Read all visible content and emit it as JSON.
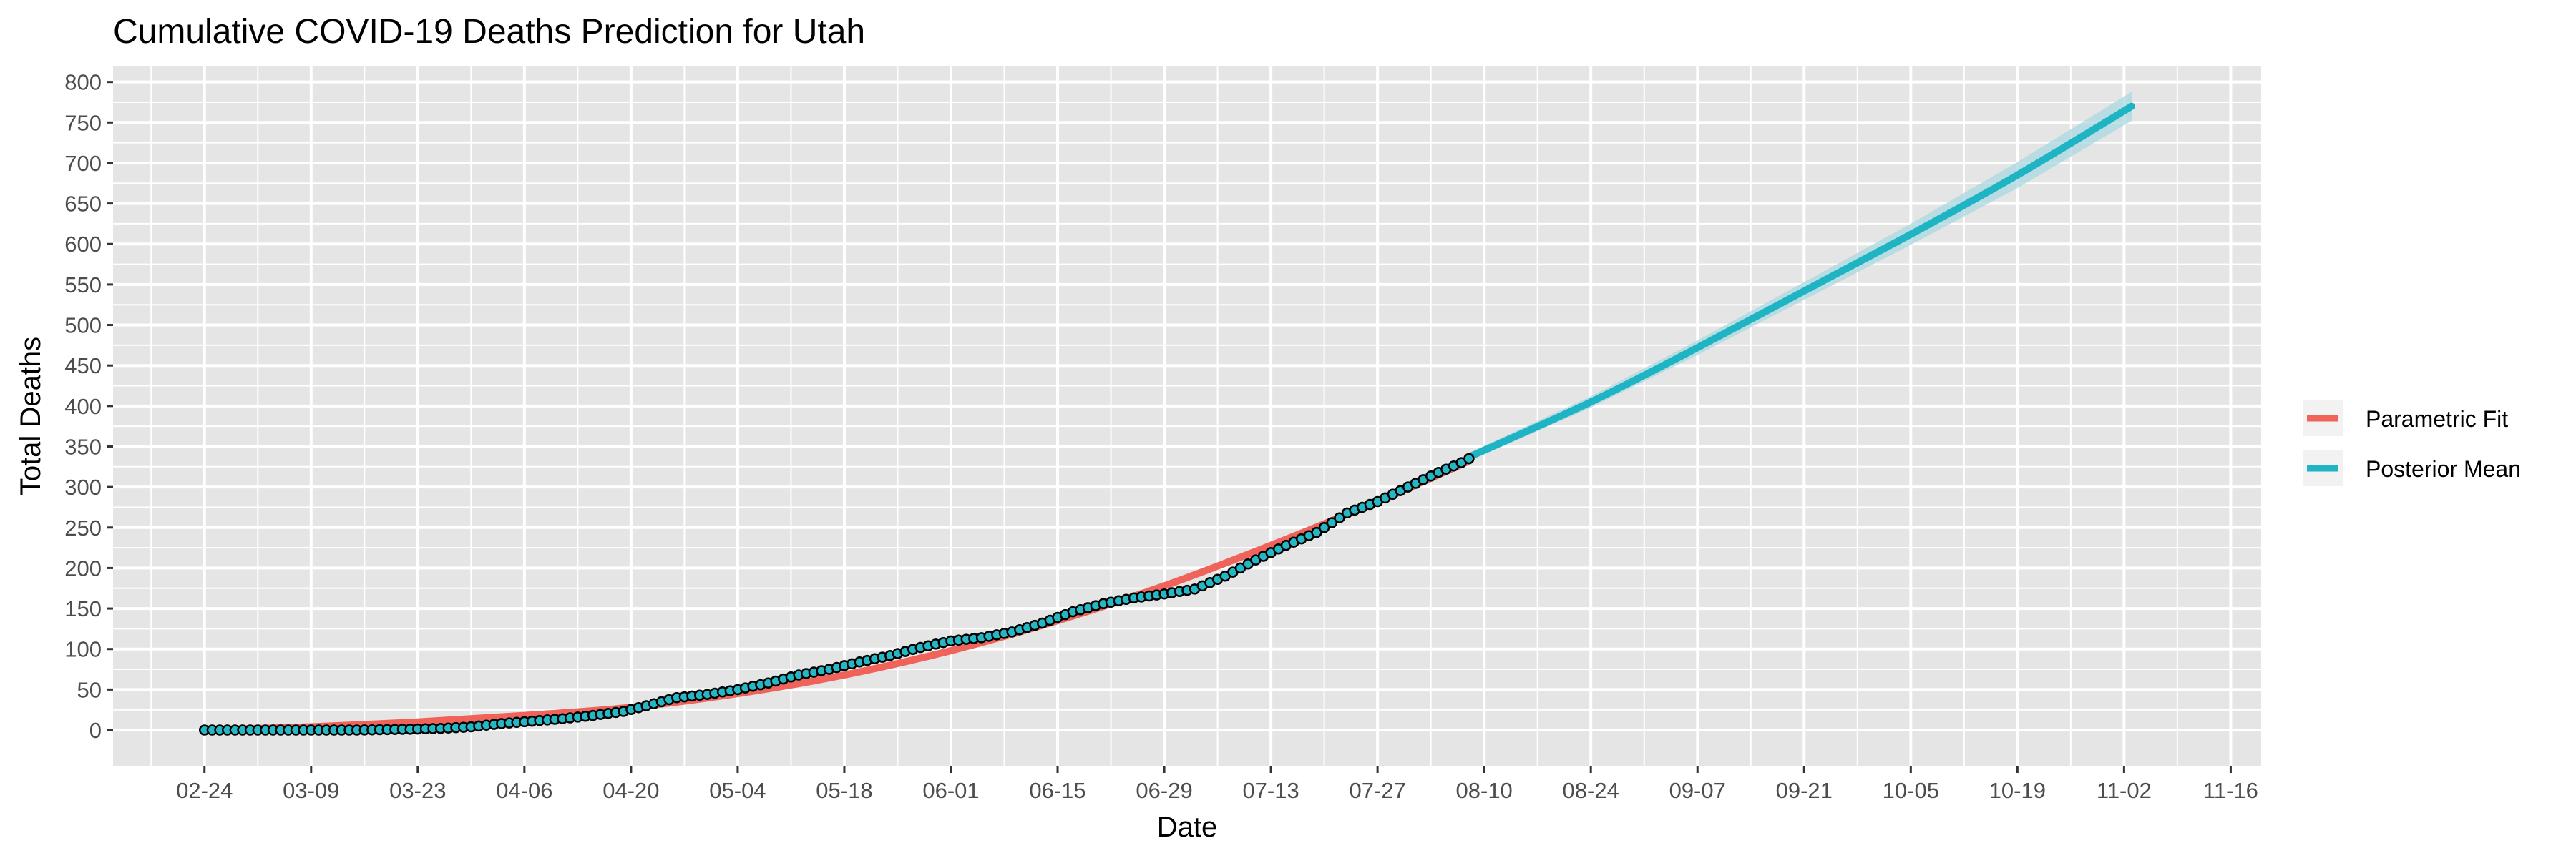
{
  "chart_data": {
    "type": "line",
    "title": "Cumulative COVID-19 Deaths Prediction for Utah",
    "xlabel": "Date",
    "ylabel": "Total Deaths",
    "x_range": [
      "2020-02-12",
      "2020-11-20"
    ],
    "ylim": [
      -45,
      820
    ],
    "y_ticks": [
      0,
      50,
      100,
      150,
      200,
      250,
      300,
      350,
      400,
      450,
      500,
      550,
      600,
      650,
      700,
      750,
      800
    ],
    "x_ticks": [
      {
        "date": "2020-02-24",
        "label": "02-24"
      },
      {
        "date": "2020-03-09",
        "label": "03-09"
      },
      {
        "date": "2020-03-23",
        "label": "03-23"
      },
      {
        "date": "2020-04-06",
        "label": "04-06"
      },
      {
        "date": "2020-04-20",
        "label": "04-20"
      },
      {
        "date": "2020-05-04",
        "label": "05-04"
      },
      {
        "date": "2020-05-18",
        "label": "05-18"
      },
      {
        "date": "2020-06-01",
        "label": "06-01"
      },
      {
        "date": "2020-06-15",
        "label": "06-15"
      },
      {
        "date": "2020-06-29",
        "label": "06-29"
      },
      {
        "date": "2020-07-13",
        "label": "07-13"
      },
      {
        "date": "2020-07-27",
        "label": "07-27"
      },
      {
        "date": "2020-08-10",
        "label": "08-10"
      },
      {
        "date": "2020-08-24",
        "label": "08-24"
      },
      {
        "date": "2020-09-07",
        "label": "09-07"
      },
      {
        "date": "2020-09-21",
        "label": "09-21"
      },
      {
        "date": "2020-10-05",
        "label": "10-05"
      },
      {
        "date": "2020-10-19",
        "label": "10-19"
      },
      {
        "date": "2020-11-02",
        "label": "11-02"
      },
      {
        "date": "2020-11-16",
        "label": "11-16"
      }
    ],
    "grid": true,
    "legend_position": "right",
    "colors": {
      "panel_background": "#e5e5e5",
      "grid": "#ffffff",
      "parametric_fit": "#f0635b",
      "posterior_mean": "#1fb4c4",
      "credible_band": "#a9d8e2",
      "observed_fill": "#25b8c4",
      "observed_stroke": "#000000"
    },
    "series": [
      {
        "name": "Parametric Fit",
        "kind": "line",
        "points": [
          [
            "2020-02-24",
            0
          ],
          [
            "2020-03-09",
            4
          ],
          [
            "2020-03-23",
            10
          ],
          [
            "2020-04-06",
            18
          ],
          [
            "2020-04-20",
            28
          ],
          [
            "2020-05-04",
            45
          ],
          [
            "2020-05-18",
            68
          ],
          [
            "2020-06-01",
            98
          ],
          [
            "2020-06-15",
            135
          ],
          [
            "2020-06-29",
            178
          ],
          [
            "2020-07-13",
            228
          ],
          [
            "2020-07-27",
            282
          ],
          [
            "2020-08-08",
            332
          ]
        ]
      },
      {
        "name": "Posterior Mean",
        "kind": "line",
        "points": [
          [
            "2020-08-08",
            337
          ],
          [
            "2020-08-24",
            405
          ],
          [
            "2020-09-07",
            472
          ],
          [
            "2020-09-21",
            542
          ],
          [
            "2020-10-05",
            612
          ],
          [
            "2020-10-19",
            685
          ],
          [
            "2020-11-03",
            770
          ]
        ],
        "band_lower": [
          332,
          398,
          463,
          531,
          599,
          669,
          752
        ],
        "band_upper": [
          342,
          412,
          481,
          553,
          625,
          701,
          788
        ]
      },
      {
        "name": "Observed",
        "kind": "points",
        "points": [
          [
            "2020-02-24",
            0
          ],
          [
            "2020-03-01",
            0
          ],
          [
            "2020-03-08",
            0
          ],
          [
            "2020-03-15",
            0
          ],
          [
            "2020-03-22",
            1
          ],
          [
            "2020-03-26",
            2
          ],
          [
            "2020-03-30",
            4
          ],
          [
            "2020-04-03",
            8
          ],
          [
            "2020-04-07",
            11
          ],
          [
            "2020-04-11",
            14
          ],
          [
            "2020-04-15",
            18
          ],
          [
            "2020-04-19",
            23
          ],
          [
            "2020-04-22",
            30
          ],
          [
            "2020-04-26",
            40
          ],
          [
            "2020-04-30",
            44
          ],
          [
            "2020-05-04",
            50
          ],
          [
            "2020-05-08",
            58
          ],
          [
            "2020-05-12",
            68
          ],
          [
            "2020-05-16",
            75
          ],
          [
            "2020-05-20",
            84
          ],
          [
            "2020-05-24",
            92
          ],
          [
            "2020-05-28",
            102
          ],
          [
            "2020-06-01",
            110
          ],
          [
            "2020-06-05",
            114
          ],
          [
            "2020-06-09",
            121
          ],
          [
            "2020-06-13",
            132
          ],
          [
            "2020-06-17",
            146
          ],
          [
            "2020-06-21",
            156
          ],
          [
            "2020-06-25",
            163
          ],
          [
            "2020-06-29",
            168
          ],
          [
            "2020-07-03",
            174
          ],
          [
            "2020-07-07",
            190
          ],
          [
            "2020-07-11",
            210
          ],
          [
            "2020-07-15",
            228
          ],
          [
            "2020-07-19",
            244
          ],
          [
            "2020-07-23",
            268
          ],
          [
            "2020-07-27",
            282
          ],
          [
            "2020-07-31",
            300
          ],
          [
            "2020-08-04",
            318
          ],
          [
            "2020-08-07",
            330
          ],
          [
            "2020-08-08",
            335
          ]
        ]
      }
    ]
  }
}
